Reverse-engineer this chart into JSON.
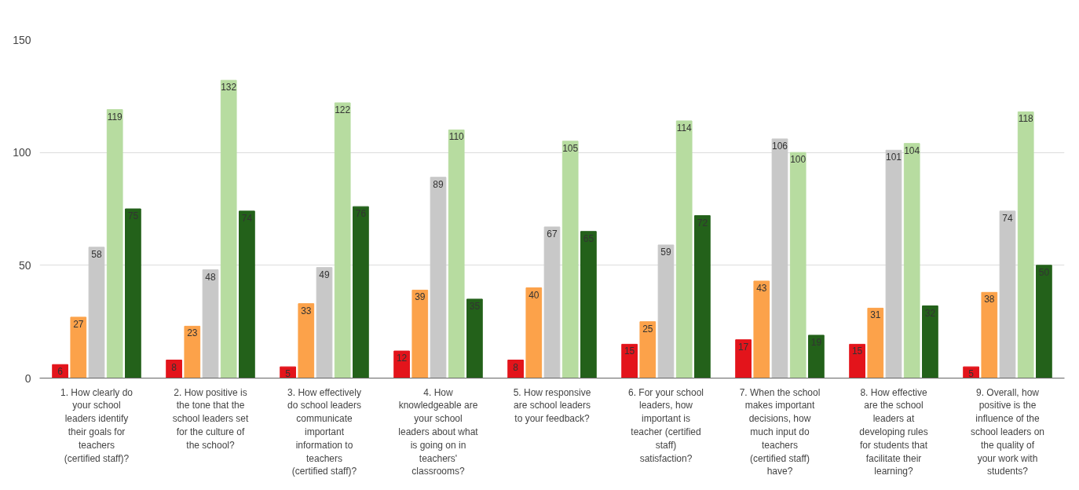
{
  "chart_data": {
    "type": "bar",
    "categories": [
      "1. How clearly do your school leaders identify their goals for teachers (certified staff)?",
      "2. How positive is the tone that the school leaders set for the culture of the school?",
      "3. How effectively do school leaders communicate important information to teachers (certified staff)?",
      "4. How knowledgeable are your school leaders about what is going on in teachers' classrooms?",
      "5. How responsive are school leaders to your feedback?",
      "6. For your school leaders, how important is teacher (certified staff) satisfaction?",
      "7. When the school makes important decisions, how much input do teachers (certified staff) have?",
      "8. How effective are the school leaders at developing rules for students that facilitate their learning?",
      "9. Overall, how positive is the influence of the school leaders on the quality of your work with students?"
    ],
    "series": [
      {
        "color": "#e3141b",
        "values": [
          6,
          8,
          5,
          12,
          8,
          15,
          17,
          15,
          5
        ]
      },
      {
        "color": "#fca24a",
        "values": [
          27,
          23,
          33,
          39,
          40,
          25,
          43,
          31,
          38
        ]
      },
      {
        "color": "#c8c8c8",
        "values": [
          58,
          48,
          49,
          89,
          67,
          59,
          106,
          101,
          74
        ]
      },
      {
        "color": "#b7dca0",
        "values": [
          119,
          132,
          122,
          110,
          105,
          114,
          100,
          104,
          118
        ]
      },
      {
        "color": "#23611a",
        "values": [
          75,
          74,
          76,
          35,
          65,
          72,
          19,
          32,
          50
        ]
      }
    ],
    "ylim": [
      0,
      150
    ],
    "yticks": [
      0,
      50,
      100,
      150
    ],
    "grid": "y",
    "data_labels": true
  }
}
